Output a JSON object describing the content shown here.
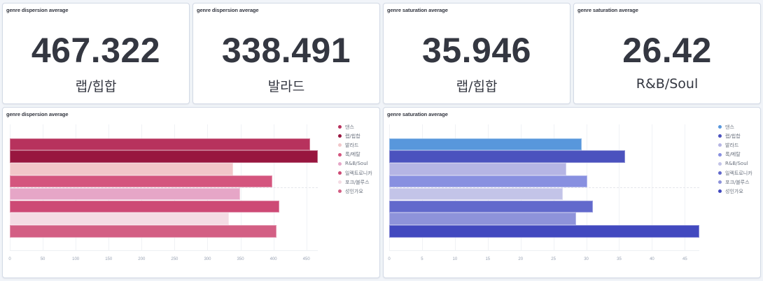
{
  "metrics": [
    {
      "title": "genre dispersion average",
      "value": "467.322",
      "label": "랩/힙합"
    },
    {
      "title": "genre dispersion average",
      "value": "338.491",
      "label": "발라드"
    },
    {
      "title": "genre saturation average",
      "value": "35.946",
      "label": "랩/힙합"
    },
    {
      "title": "genre saturation average",
      "value": "26.42",
      "label": "R&B/Soul"
    }
  ],
  "chart_data": [
    {
      "type": "bar",
      "orientation": "horizontal",
      "title": "genre dispersion average",
      "categories": [
        "댄스",
        "랩/힙합",
        "발라드",
        "록/메탈",
        "R&B/Soul",
        "일렉트로니카",
        "포크/블루스",
        "성인가요"
      ],
      "values": [
        456,
        467.322,
        338.491,
        398,
        349,
        409,
        332,
        405
      ],
      "colors": [
        "#b7325d",
        "#98163f",
        "#f2c6c9",
        "#d4557e",
        "#e6a6c7",
        "#cd4a75",
        "#f4dce4",
        "#d35f84"
      ],
      "xlim": [
        0,
        467.322
      ],
      "xticks": [
        "0",
        "50",
        "100",
        "150",
        "200",
        "250",
        "300",
        "350",
        "400",
        "450"
      ],
      "xtick_values": [
        0,
        50,
        100,
        150,
        200,
        250,
        300,
        350,
        400,
        450
      ],
      "legend_position": "right",
      "grid": true
    },
    {
      "type": "bar",
      "orientation": "horizontal",
      "title": "genre saturation average",
      "categories": [
        "댄스",
        "랩/힙합",
        "발라드",
        "록/메탈",
        "R&B/Soul",
        "일렉트로니카",
        "포크/블루스",
        "성인가요"
      ],
      "values": [
        29.3,
        35.946,
        27.0,
        30.2,
        26.42,
        31.0,
        28.4,
        47.2
      ],
      "colors": [
        "#5897dc",
        "#4b52be",
        "#b5b5e4",
        "#8890e0",
        "#c3c4e8",
        "#6269cc",
        "#8e93da",
        "#4249bf"
      ],
      "xlim": [
        0,
        47.2
      ],
      "xticks": [
        "0",
        "5",
        "10",
        "15",
        "20",
        "25",
        "30",
        "35",
        "40",
        "45"
      ],
      "xtick_values": [
        0,
        5,
        10,
        15,
        20,
        25,
        30,
        35,
        40,
        45
      ],
      "legend_position": "right",
      "grid": true
    }
  ]
}
